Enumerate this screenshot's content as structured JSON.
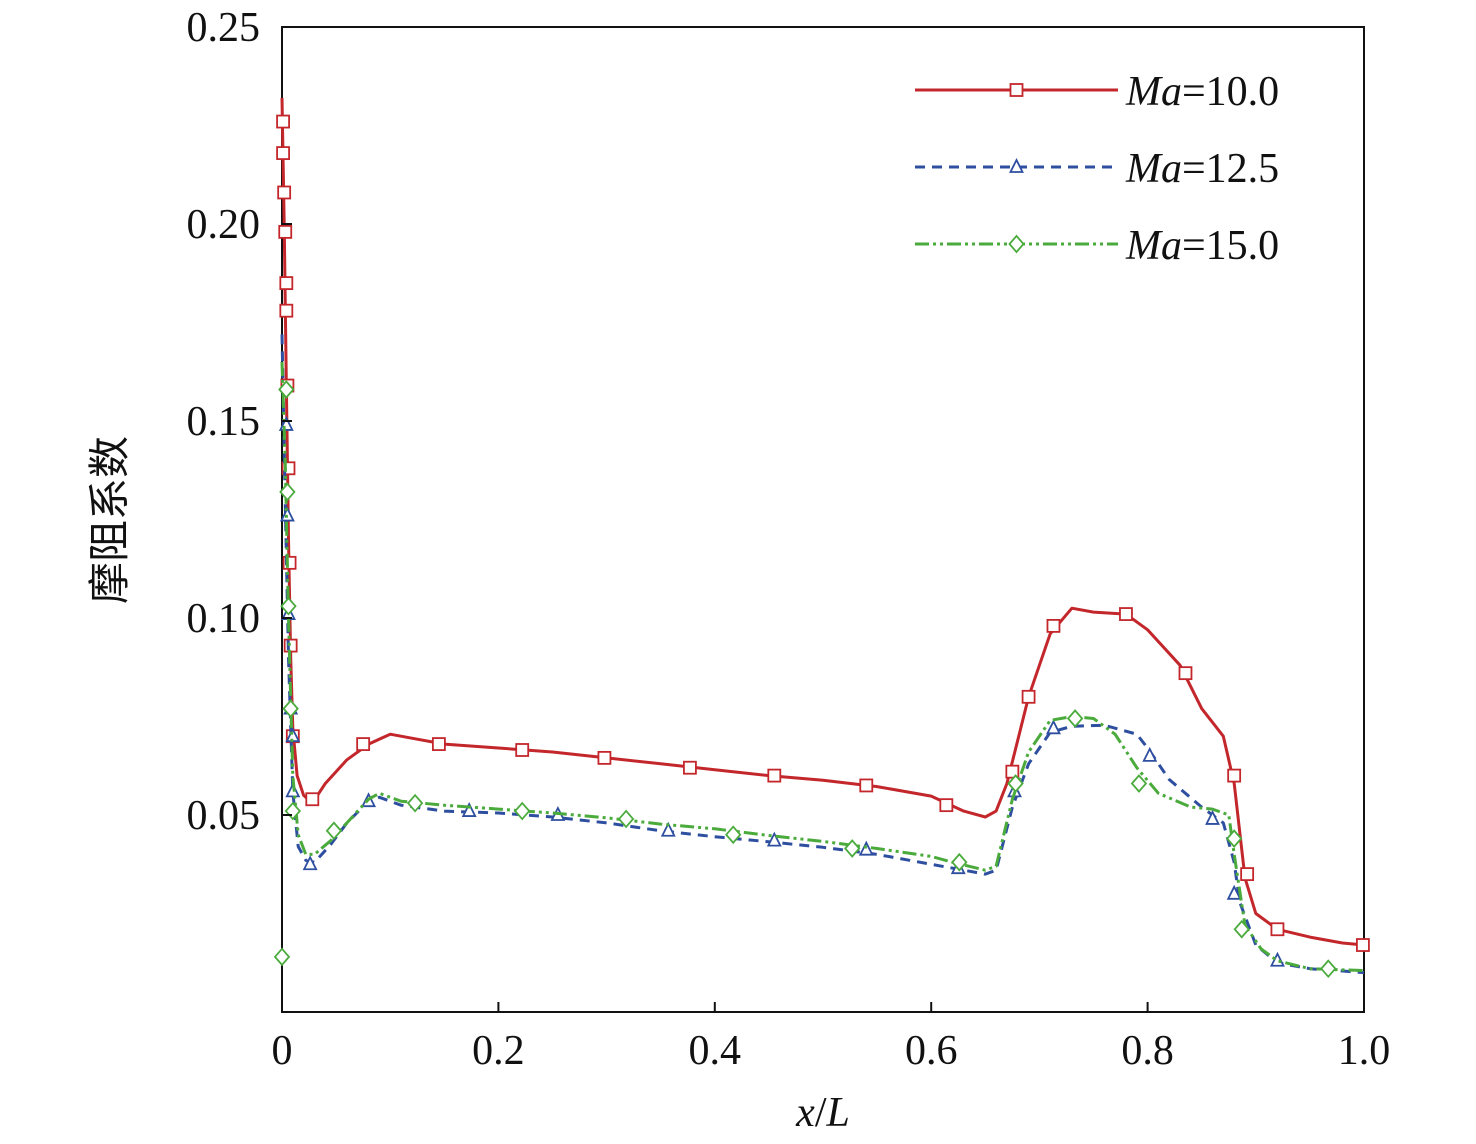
{
  "chart_data": {
    "type": "line",
    "title": "",
    "xlabel": {
      "var": "x",
      "sep": "/",
      "ref": "L"
    },
    "ylabel": "摩阻系数",
    "xlim": [
      0,
      1.0
    ],
    "ylim": [
      0.0,
      0.25
    ],
    "x_ticks": [
      {
        "value": 0,
        "label": "0"
      },
      {
        "value": 0.2,
        "label": "0.2"
      },
      {
        "value": 0.4,
        "label": "0.4"
      },
      {
        "value": 0.6,
        "label": "0.6"
      },
      {
        "value": 0.8,
        "label": "0.8"
      },
      {
        "value": 1.0,
        "label": "1.0"
      }
    ],
    "y_ticks": [
      {
        "value": 0.05,
        "label": "0.05"
      },
      {
        "value": 0.1,
        "label": "0.10"
      },
      {
        "value": 0.15,
        "label": "0.15"
      },
      {
        "value": 0.2,
        "label": "0.20"
      },
      {
        "value": 0.25,
        "label": "0.25"
      }
    ],
    "grid": false,
    "legend_position": "top-right",
    "series": [
      {
        "name": "Ma=10.0",
        "name_var": "Ma",
        "name_value": "=10.0",
        "color": "#c3272b",
        "dash": "",
        "marker": "square",
        "line": [
          [
            0.0,
            0.232
          ],
          [
            0.002,
            0.2
          ],
          [
            0.004,
            0.16
          ],
          [
            0.006,
            0.12
          ],
          [
            0.008,
            0.09
          ],
          [
            0.01,
            0.072
          ],
          [
            0.014,
            0.06
          ],
          [
            0.02,
            0.055
          ],
          [
            0.028,
            0.053
          ],
          [
            0.04,
            0.058
          ],
          [
            0.06,
            0.064
          ],
          [
            0.08,
            0.068
          ],
          [
            0.1,
            0.0705
          ],
          [
            0.12,
            0.0695
          ],
          [
            0.15,
            0.068
          ],
          [
            0.2,
            0.067
          ],
          [
            0.25,
            0.066
          ],
          [
            0.3,
            0.0645
          ],
          [
            0.35,
            0.063
          ],
          [
            0.4,
            0.0615
          ],
          [
            0.45,
            0.06
          ],
          [
            0.5,
            0.0588
          ],
          [
            0.55,
            0.0572
          ],
          [
            0.6,
            0.0548
          ],
          [
            0.63,
            0.051
          ],
          [
            0.65,
            0.0495
          ],
          [
            0.66,
            0.051
          ],
          [
            0.67,
            0.058
          ],
          [
            0.69,
            0.08
          ],
          [
            0.71,
            0.096
          ],
          [
            0.73,
            0.1025
          ],
          [
            0.75,
            0.1015
          ],
          [
            0.78,
            0.101
          ],
          [
            0.8,
            0.097
          ],
          [
            0.83,
            0.088
          ],
          [
            0.85,
            0.077
          ],
          [
            0.87,
            0.07
          ],
          [
            0.88,
            0.058
          ],
          [
            0.89,
            0.034
          ],
          [
            0.9,
            0.025
          ],
          [
            0.92,
            0.021
          ],
          [
            0.95,
            0.019
          ],
          [
            0.98,
            0.0175
          ],
          [
            1.0,
            0.017
          ]
        ],
        "markers": [
          [
            0.001,
            0.226
          ],
          [
            0.001,
            0.218
          ],
          [
            0.002,
            0.208
          ],
          [
            0.003,
            0.198
          ],
          [
            0.004,
            0.185
          ],
          [
            0.004,
            0.178
          ],
          [
            0.005,
            0.159
          ],
          [
            0.006,
            0.138
          ],
          [
            0.007,
            0.114
          ],
          [
            0.008,
            0.093
          ],
          [
            0.01,
            0.07
          ],
          [
            0.028,
            0.054
          ],
          [
            0.075,
            0.068
          ],
          [
            0.145,
            0.068
          ],
          [
            0.222,
            0.0665
          ],
          [
            0.298,
            0.0645
          ],
          [
            0.377,
            0.062
          ],
          [
            0.455,
            0.06
          ],
          [
            0.54,
            0.0575
          ],
          [
            0.614,
            0.0525
          ],
          [
            0.675,
            0.061
          ],
          [
            0.69,
            0.08
          ],
          [
            0.713,
            0.098
          ],
          [
            0.78,
            0.101
          ],
          [
            0.835,
            0.086
          ],
          [
            0.88,
            0.06
          ],
          [
            0.892,
            0.035
          ],
          [
            0.92,
            0.021
          ],
          [
            0.999,
            0.017
          ]
        ]
      },
      {
        "name": "Ma=12.5",
        "name_var": "Ma",
        "name_value": "=12.5",
        "color": "#2e4fa0",
        "dash": "10 7",
        "marker": "triangle",
        "line": [
          [
            0.0,
            0.172
          ],
          [
            0.003,
            0.13
          ],
          [
            0.006,
            0.09
          ],
          [
            0.01,
            0.056
          ],
          [
            0.015,
            0.042
          ],
          [
            0.022,
            0.0385
          ],
          [
            0.03,
            0.038
          ],
          [
            0.045,
            0.0425
          ],
          [
            0.06,
            0.048
          ],
          [
            0.08,
            0.0535
          ],
          [
            0.09,
            0.0545
          ],
          [
            0.11,
            0.0525
          ],
          [
            0.15,
            0.051
          ],
          [
            0.2,
            0.0505
          ],
          [
            0.25,
            0.0495
          ],
          [
            0.3,
            0.048
          ],
          [
            0.35,
            0.046
          ],
          [
            0.4,
            0.0445
          ],
          [
            0.45,
            0.0432
          ],
          [
            0.5,
            0.0418
          ],
          [
            0.55,
            0.04
          ],
          [
            0.6,
            0.0375
          ],
          [
            0.62,
            0.0365
          ],
          [
            0.65,
            0.035
          ],
          [
            0.66,
            0.036
          ],
          [
            0.675,
            0.052
          ],
          [
            0.69,
            0.063
          ],
          [
            0.71,
            0.071
          ],
          [
            0.73,
            0.0725
          ],
          [
            0.76,
            0.0728
          ],
          [
            0.79,
            0.0705
          ],
          [
            0.8,
            0.067
          ],
          [
            0.82,
            0.059
          ],
          [
            0.85,
            0.052
          ],
          [
            0.87,
            0.048
          ],
          [
            0.88,
            0.038
          ],
          [
            0.885,
            0.028
          ],
          [
            0.9,
            0.017
          ],
          [
            0.92,
            0.0125
          ],
          [
            0.95,
            0.011
          ],
          [
            1.0,
            0.01
          ]
        ],
        "markers": [
          [
            0.004,
            0.149
          ],
          [
            0.005,
            0.126
          ],
          [
            0.006,
            0.101
          ],
          [
            0.008,
            0.077
          ],
          [
            0.01,
            0.07
          ],
          [
            0.01,
            0.056
          ],
          [
            0.026,
            0.0375
          ],
          [
            0.08,
            0.0535
          ],
          [
            0.173,
            0.051
          ],
          [
            0.255,
            0.05
          ],
          [
            0.357,
            0.046
          ],
          [
            0.455,
            0.0435
          ],
          [
            0.54,
            0.0412
          ],
          [
            0.625,
            0.0365
          ],
          [
            0.677,
            0.056
          ],
          [
            0.713,
            0.072
          ],
          [
            0.802,
            0.065
          ],
          [
            0.86,
            0.049
          ],
          [
            0.88,
            0.03
          ],
          [
            0.92,
            0.013
          ]
        ]
      },
      {
        "name": "Ma=15.0",
        "name_var": "Ma",
        "name_value": "=15.0",
        "color": "#4aab3c",
        "dash": "14 4 3 4 3 4",
        "marker": "diamond",
        "line": [
          [
            0.0,
            0.165
          ],
          [
            0.003,
            0.14
          ],
          [
            0.006,
            0.1
          ],
          [
            0.01,
            0.06
          ],
          [
            0.015,
            0.045
          ],
          [
            0.022,
            0.04
          ],
          [
            0.03,
            0.04
          ],
          [
            0.045,
            0.0435
          ],
          [
            0.06,
            0.048
          ],
          [
            0.08,
            0.054
          ],
          [
            0.09,
            0.0555
          ],
          [
            0.11,
            0.0535
          ],
          [
            0.15,
            0.0525
          ],
          [
            0.2,
            0.0515
          ],
          [
            0.25,
            0.0505
          ],
          [
            0.3,
            0.0493
          ],
          [
            0.35,
            0.0477
          ],
          [
            0.4,
            0.0465
          ],
          [
            0.45,
            0.0448
          ],
          [
            0.5,
            0.0433
          ],
          [
            0.55,
            0.0415
          ],
          [
            0.6,
            0.0395
          ],
          [
            0.62,
            0.038
          ],
          [
            0.65,
            0.036
          ],
          [
            0.66,
            0.037
          ],
          [
            0.675,
            0.054
          ],
          [
            0.69,
            0.066
          ],
          [
            0.71,
            0.074
          ],
          [
            0.73,
            0.075
          ],
          [
            0.75,
            0.0745
          ],
          [
            0.77,
            0.0705
          ],
          [
            0.79,
            0.062
          ],
          [
            0.81,
            0.0555
          ],
          [
            0.84,
            0.052
          ],
          [
            0.86,
            0.0515
          ],
          [
            0.875,
            0.05
          ],
          [
            0.88,
            0.04
          ],
          [
            0.89,
            0.022
          ],
          [
            0.905,
            0.016
          ],
          [
            0.92,
            0.013
          ],
          [
            0.95,
            0.011
          ],
          [
            1.0,
            0.0105
          ]
        ],
        "markers": [
          [
            0.0,
            0.014
          ],
          [
            0.004,
            0.158
          ],
          [
            0.005,
            0.132
          ],
          [
            0.006,
            0.103
          ],
          [
            0.008,
            0.077
          ],
          [
            0.01,
            0.051
          ],
          [
            0.048,
            0.046
          ],
          [
            0.123,
            0.053
          ],
          [
            0.222,
            0.051
          ],
          [
            0.318,
            0.049
          ],
          [
            0.417,
            0.045
          ],
          [
            0.527,
            0.0415
          ],
          [
            0.626,
            0.038
          ],
          [
            0.678,
            0.058
          ],
          [
            0.733,
            0.0745
          ],
          [
            0.792,
            0.058
          ],
          [
            0.88,
            0.044
          ],
          [
            0.887,
            0.021
          ],
          [
            0.967,
            0.011
          ]
        ]
      }
    ]
  }
}
